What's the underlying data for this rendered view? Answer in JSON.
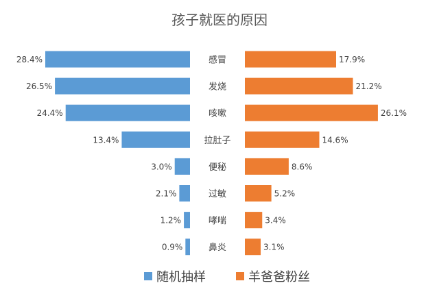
{
  "chart_data": {
    "type": "bar",
    "title": "孩子就医的原因",
    "categories": [
      "感冒",
      "发烧",
      "咳嗽",
      "拉肚子",
      "便秘",
      "过敏",
      "哮喘",
      "鼻炎"
    ],
    "series": [
      {
        "name": "随机抽样",
        "values": [
          28.4,
          26.5,
          24.4,
          13.4,
          3.0,
          2.1,
          1.2,
          0.9
        ],
        "labels": [
          "28.4%",
          "26.5%",
          "24.4%",
          "13.4%",
          "3.0%",
          "2.1%",
          "1.2%",
          "0.9%"
        ],
        "color": "#5B9BD5"
      },
      {
        "name": "羊爸爸粉丝",
        "values": [
          17.9,
          21.2,
          26.1,
          14.6,
          8.6,
          5.2,
          3.4,
          3.1
        ],
        "labels": [
          "17.9%",
          "21.2%",
          "26.1%",
          "14.6%",
          "8.6%",
          "5.2%",
          "3.4%",
          "3.1%"
        ],
        "color": "#ED7D31"
      }
    ],
    "value_unit": "%",
    "legend_position": "bottom",
    "grid": false
  }
}
